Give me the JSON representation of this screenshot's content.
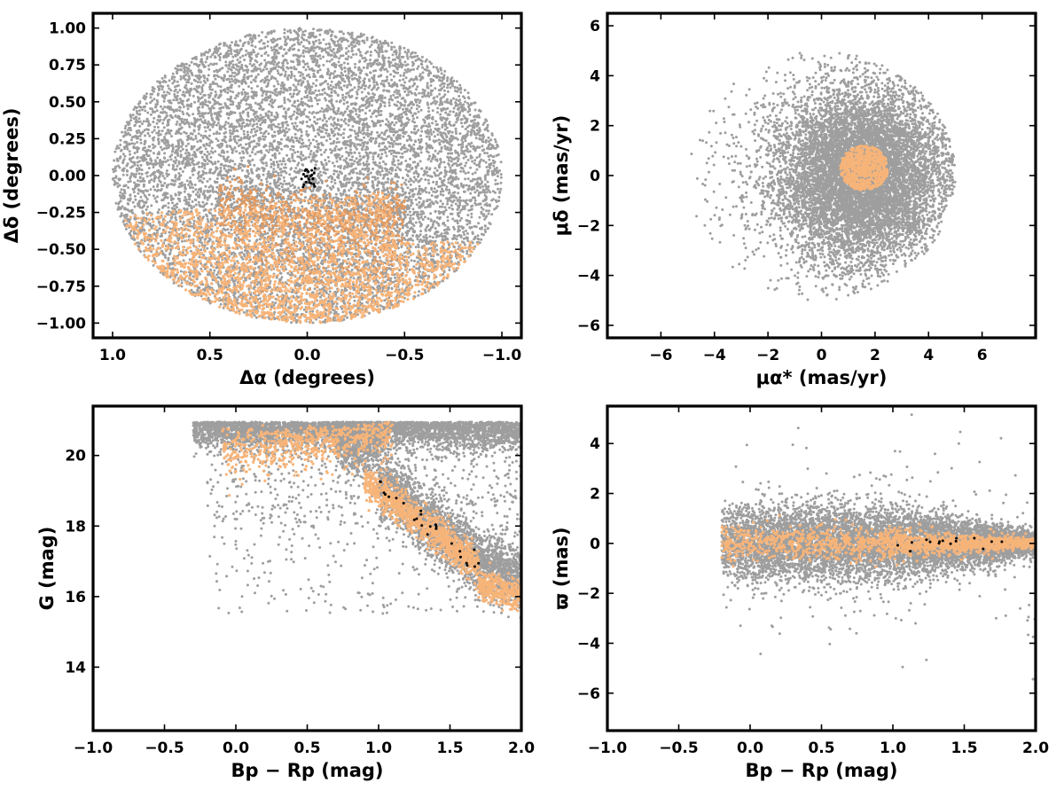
{
  "chart_data": [
    {
      "type": "scatter",
      "id": "sky",
      "xlabel": "Δα (degrees)",
      "ylabel": "Δδ (degrees)",
      "xlim": [
        1.1,
        -1.1
      ],
      "ylim": [
        -1.1,
        1.1
      ],
      "xticks": [
        1.0,
        0.5,
        0.0,
        -0.5,
        -1.0
      ],
      "xtick_labels": [
        "1.0",
        "0.5",
        "0.0",
        "−0.5",
        "−1.0"
      ],
      "yticks": [
        -1.0,
        -0.75,
        -0.5,
        -0.25,
        0.0,
        0.25,
        0.5,
        0.75,
        1.0
      ],
      "ytick_labels": [
        "−1.00",
        "−0.75",
        "−0.50",
        "−0.25",
        "0.00",
        "0.25",
        "0.50",
        "0.75",
        "1.00"
      ],
      "grid": false,
      "series": [
        {
          "color": "#9e9e9e",
          "description": "all stars within 1 degree radius",
          "approx_count": 9000
        },
        {
          "color": "#f7b479",
          "description": "orange members, southern half",
          "approx_count": 2200
        },
        {
          "color": "#e09a62",
          "description": "darker orange members along dust lane",
          "approx_count": 700
        },
        {
          "color": "#000000",
          "description": "black members near centre",
          "approx_count": 25,
          "center": [
            0.0,
            0.0
          ]
        }
      ]
    },
    {
      "type": "scatter",
      "id": "pm",
      "xlabel": "μα* (mas/yr)",
      "ylabel": "μδ (mas/yr)",
      "xlim": [
        -8,
        8
      ],
      "ylim": [
        -6.5,
        6.5
      ],
      "xticks": [
        -6,
        -4,
        -2,
        0,
        2,
        4,
        6
      ],
      "xtick_labels": [
        "−6",
        "−4",
        "−2",
        "0",
        "2",
        "4",
        "6"
      ],
      "yticks": [
        -6,
        -4,
        -2,
        0,
        2,
        4,
        6
      ],
      "ytick_labels": [
        "−6",
        "−4",
        "−2",
        "0",
        "2",
        "4",
        "6"
      ],
      "grid": false,
      "series": [
        {
          "color": "#9e9e9e",
          "description": "field stars within PM radius 5 mas/yr",
          "approx_count": 9000
        },
        {
          "color": "#f7b479",
          "description": "cluster members",
          "center": [
            1.6,
            0.3
          ],
          "approx_count": 600
        }
      ]
    },
    {
      "type": "scatter",
      "id": "cmd",
      "xlabel": "Bp − Rp (mag)",
      "ylabel": "G (mag)",
      "xlim": [
        -1.0,
        2.0
      ],
      "ylim": [
        12.2,
        21.4
      ],
      "xticks": [
        -1.0,
        -0.5,
        0.0,
        0.5,
        1.0,
        1.5,
        2.0
      ],
      "xtick_labels": [
        "−1.0",
        "−0.5",
        "0.0",
        "0.5",
        "1.0",
        "1.5",
        "2.0"
      ],
      "yticks": [
        14,
        16,
        18,
        20
      ],
      "ytick_labels": [
        "14",
        "16",
        "18",
        "20"
      ],
      "grid": false,
      "series": [
        {
          "color": "#9e9e9e",
          "description": "field stars",
          "approx_count": 8000
        },
        {
          "color": "#f7b479",
          "description": "members along sequence",
          "approx_count": 2000
        },
        {
          "color": "#000000",
          "description": "black members",
          "approx_count": 25
        }
      ]
    },
    {
      "type": "scatter",
      "id": "plx",
      "xlabel": "Bp − Rp (mag)",
      "ylabel": "ϖ (mas)",
      "xlim": [
        -1.0,
        2.0
      ],
      "ylim": [
        -7.5,
        5.5
      ],
      "xticks": [
        -1.0,
        -0.5,
        0.0,
        0.5,
        1.0,
        1.5,
        2.0
      ],
      "xtick_labels": [
        "−1.0",
        "−0.5",
        "0.0",
        "0.5",
        "1.0",
        "1.5",
        "2.0"
      ],
      "yticks": [
        -6,
        -4,
        -2,
        0,
        2,
        4
      ],
      "ytick_labels": [
        "−6",
        "−4",
        "−2",
        "0",
        "2",
        "4"
      ],
      "grid": false,
      "series": [
        {
          "color": "#9e9e9e",
          "description": "field stars",
          "approx_count": 8000
        },
        {
          "color": "#f7b479",
          "description": "members",
          "approx_count": 1500
        },
        {
          "color": "#000000",
          "description": "black members",
          "approx_count": 15
        }
      ]
    }
  ]
}
